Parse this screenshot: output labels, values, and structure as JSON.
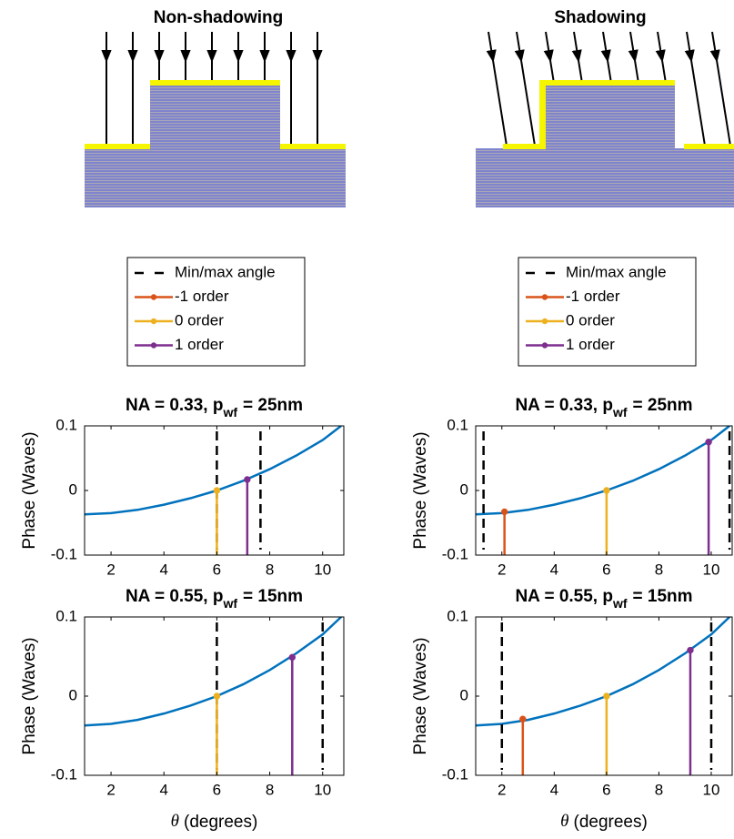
{
  "diagrams": [
    {
      "title": "Non-shadowing"
    },
    {
      "title": "Shadowing"
    }
  ],
  "chart_data": [
    {
      "type": "line",
      "legend": "top",
      "title": {
        "text": "NA = 0.33, p",
        "subscript": "wf",
        "suffix": "= 25nm"
      },
      "ylabel": "Phase (Waves)",
      "xlim": [
        1,
        10.8
      ],
      "ylim": [
        -0.1,
        0.1
      ],
      "xticks": [
        2,
        4,
        6,
        8,
        10
      ],
      "yticks": [
        -0.1,
        0,
        0.1
      ],
      "series": [
        {
          "style": "line",
          "color": "#0072bd",
          "x": [
            1,
            2,
            3,
            4,
            5,
            6,
            7,
            8,
            9,
            10,
            10.7
          ],
          "values": [
            -0.037,
            -0.035,
            -0.03,
            -0.022,
            -0.012,
            0,
            0.015,
            0.033,
            0.054,
            0.078,
            0.1
          ]
        },
        {
          "style": "vline",
          "name": "Min/max angle",
          "color": "#000000",
          "x": [
            6,
            7.65
          ]
        },
        {
          "style": "stem",
          "name": "-1 order",
          "color": "#d95319",
          "x": [],
          "values": []
        },
        {
          "style": "stem",
          "name": "0 order",
          "color": "#edb120",
          "x": [
            6
          ],
          "values": [
            0
          ]
        },
        {
          "style": "stem",
          "name": "1 order",
          "color": "#7e2f8e",
          "x": [
            7.15
          ],
          "values": [
            0.017
          ]
        }
      ]
    },
    {
      "type": "line",
      "legend": "top",
      "title": {
        "text": "NA = 0.33, p",
        "subscript": "wf",
        "suffix": "= 25nm"
      },
      "ylabel": "Phase (Waves)",
      "xlim": [
        1,
        10.8
      ],
      "ylim": [
        -0.1,
        0.1
      ],
      "xticks": [
        2,
        4,
        6,
        8,
        10
      ],
      "yticks": [
        -0.1,
        0,
        0.1
      ],
      "series": [
        {
          "style": "line",
          "color": "#0072bd",
          "x": [
            1,
            2,
            3,
            4,
            5,
            6,
            7,
            8,
            9,
            10,
            10.7
          ],
          "values": [
            -0.037,
            -0.035,
            -0.03,
            -0.022,
            -0.012,
            0,
            0.015,
            0.033,
            0.054,
            0.078,
            0.1
          ]
        },
        {
          "style": "vline",
          "name": "Min/max angle",
          "color": "#000000",
          "x": [
            1.3,
            10.7
          ]
        },
        {
          "style": "stem",
          "name": "-1 order",
          "color": "#d95319",
          "x": [
            2.1
          ],
          "values": [
            -0.033
          ]
        },
        {
          "style": "stem",
          "name": "0 order",
          "color": "#edb120",
          "x": [
            6
          ],
          "values": [
            0
          ]
        },
        {
          "style": "stem",
          "name": "1 order",
          "color": "#7e2f8e",
          "x": [
            9.9
          ],
          "values": [
            0.075
          ]
        }
      ]
    },
    {
      "type": "line",
      "title": {
        "text": "NA = 0.55, p",
        "subscript": "wf",
        "suffix": "= 15nm"
      },
      "ylabel": "Phase (Waves)",
      "xlabel": {
        "symbol": "θ",
        "text": "(degrees)"
      },
      "xlim": [
        1,
        10.8
      ],
      "ylim": [
        -0.1,
        0.1
      ],
      "xticks": [
        2,
        4,
        6,
        8,
        10
      ],
      "yticks": [
        -0.1,
        0,
        0.1
      ],
      "series": [
        {
          "style": "line",
          "color": "#0072bd",
          "x": [
            1,
            2,
            3,
            4,
            5,
            6,
            7,
            8,
            9,
            10,
            10.7
          ],
          "values": [
            -0.037,
            -0.035,
            -0.03,
            -0.022,
            -0.012,
            0,
            0.015,
            0.033,
            0.054,
            0.078,
            0.1
          ]
        },
        {
          "style": "vline",
          "color": "#000000",
          "x": [
            6,
            10
          ]
        },
        {
          "style": "stem",
          "color": "#edb120",
          "x": [
            6
          ],
          "values": [
            0
          ]
        },
        {
          "style": "stem",
          "color": "#7e2f8e",
          "x": [
            8.85
          ],
          "values": [
            0.049
          ]
        }
      ]
    },
    {
      "type": "line",
      "title": {
        "text": "NA = 0.55, p",
        "subscript": "wf",
        "suffix": "= 15nm"
      },
      "ylabel": "Phase (Waves)",
      "xlabel": {
        "symbol": "θ",
        "text": "(degrees)"
      },
      "xlim": [
        1,
        10.8
      ],
      "ylim": [
        -0.1,
        0.1
      ],
      "xticks": [
        2,
        4,
        6,
        8,
        10
      ],
      "yticks": [
        -0.1,
        0,
        0.1
      ],
      "series": [
        {
          "style": "line",
          "color": "#0072bd",
          "x": [
            1,
            2,
            3,
            4,
            5,
            6,
            7,
            8,
            9,
            10,
            10.7
          ],
          "values": [
            -0.037,
            -0.035,
            -0.03,
            -0.022,
            -0.012,
            0,
            0.015,
            0.033,
            0.054,
            0.078,
            0.1
          ]
        },
        {
          "style": "vline",
          "color": "#000000",
          "x": [
            2,
            10
          ]
        },
        {
          "style": "stem",
          "color": "#d95319",
          "x": [
            2.8
          ],
          "values": [
            -0.029
          ]
        },
        {
          "style": "stem",
          "color": "#edb120",
          "x": [
            6
          ],
          "values": [
            0
          ]
        },
        {
          "style": "stem",
          "color": "#7e2f8e",
          "x": [
            9.2
          ],
          "values": [
            0.058
          ]
        }
      ]
    }
  ]
}
